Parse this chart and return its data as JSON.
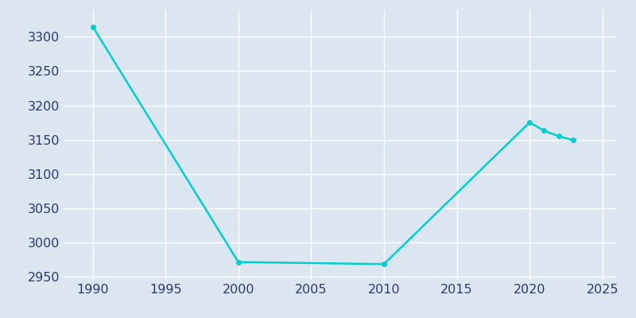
{
  "x": [
    1990,
    2000,
    2010,
    2020,
    2021,
    2022,
    2023
  ],
  "y": [
    3315,
    2971,
    2968,
    3175,
    3163,
    3155,
    3149
  ],
  "line_color": "#00CED1",
  "marker_color": "#00CED1",
  "background_color": "#DCE6F0",
  "grid_color": "#FFFFFF",
  "text_color": "#2B3A6B",
  "xlim": [
    1988,
    2026
  ],
  "ylim": [
    2945,
    3340
  ],
  "xticks": [
    1990,
    1995,
    2000,
    2005,
    2010,
    2015,
    2020,
    2025
  ],
  "yticks": [
    2950,
    3000,
    3050,
    3100,
    3150,
    3200,
    3250,
    3300
  ],
  "linewidth": 1.8,
  "markersize": 4,
  "tick_fontsize": 11.5,
  "fig_bg_color": "#DCE6F0"
}
